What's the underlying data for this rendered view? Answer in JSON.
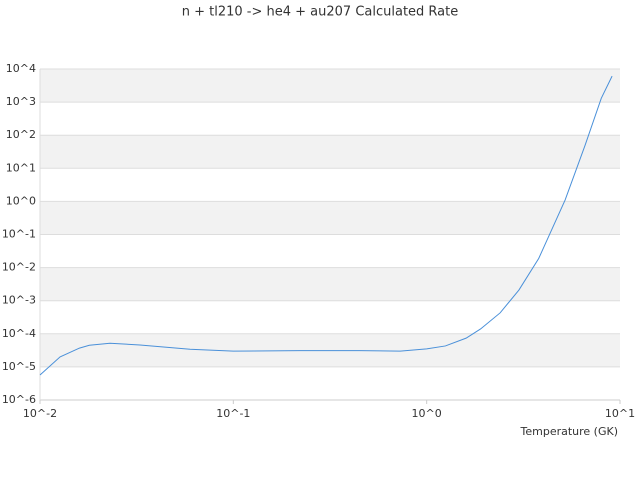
{
  "chart_data": {
    "type": "line",
    "title": "n + tl210 -> he4 + au207 Calculated Rate",
    "x_label": "Temperature (GK)",
    "xscale": "log",
    "yscale": "log",
    "xlim": [
      0.01,
      10
    ],
    "ylim": [
      1e-06,
      10000
    ],
    "xticks": [
      {
        "value": 0.01,
        "label": "10^-2"
      },
      {
        "value": 0.1,
        "label": "10^-1"
      },
      {
        "value": 1,
        "label": "10^0"
      },
      {
        "value": 10,
        "label": "10^1"
      }
    ],
    "yticks": [
      {
        "value": 1e-06,
        "label": "10^-6"
      },
      {
        "value": 1e-05,
        "label": "10^-5"
      },
      {
        "value": 0.0001,
        "label": "10^-4"
      },
      {
        "value": 0.001,
        "label": "10^-3"
      },
      {
        "value": 0.01,
        "label": "10^-2"
      },
      {
        "value": 0.1,
        "label": "10^-1"
      },
      {
        "value": 1,
        "label": "10^0"
      },
      {
        "value": 10,
        "label": "10^1"
      },
      {
        "value": 100,
        "label": "10^2"
      },
      {
        "value": 1000,
        "label": "10^3"
      },
      {
        "value": 10000,
        "label": "10^4"
      }
    ],
    "grid": true,
    "series": [
      {
        "color": "#4a90d9",
        "x": [
          0.01,
          0.0127,
          0.016,
          0.018,
          0.023,
          0.0329,
          0.0597,
          0.1,
          0.22,
          0.45,
          0.73,
          1,
          1.25,
          1.6,
          1.9,
          2.4,
          3.0,
          3.8,
          5.2,
          6.6,
          8.0,
          9.1
        ],
        "values": [
          5.7e-06,
          2e-05,
          3.7e-05,
          4.5e-05,
          5.2e-05,
          4.6e-05,
          3.4e-05,
          3e-05,
          3.1e-05,
          3.1e-05,
          3e-05,
          3.5e-05,
          4.3e-05,
          7.4e-05,
          0.00014,
          0.00043,
          0.0021,
          0.019,
          1.1,
          50,
          1300,
          6100
        ]
      }
    ]
  }
}
